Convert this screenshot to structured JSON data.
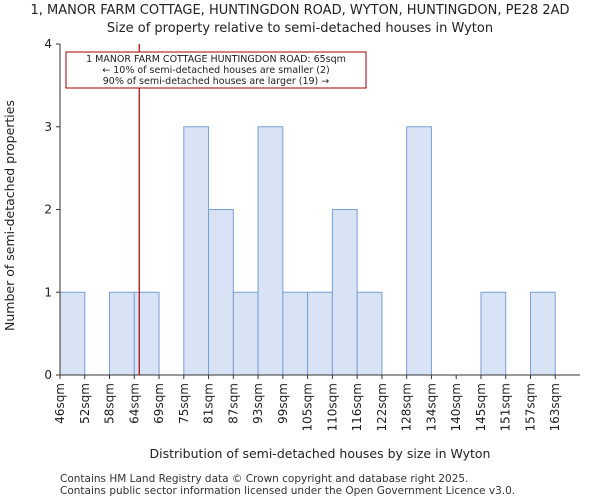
{
  "chart_data": {
    "type": "bar",
    "title": "1, MANOR FARM COTTAGE, HUNTINGDON ROAD, WYTON, HUNTINGDON, PE28 2AD",
    "subtitle": "Size of property relative to semi-detached houses in Wyton",
    "xlabel": "Distribution of semi-detached houses by size in Wyton",
    "ylabel": "Number of semi-detached properties",
    "categories": [
      "46sqm",
      "52sqm",
      "58sqm",
      "64sqm",
      "69sqm",
      "75sqm",
      "81sqm",
      "87sqm",
      "93sqm",
      "99sqm",
      "105sqm",
      "110sqm",
      "116sqm",
      "122sqm",
      "128sqm",
      "134sqm",
      "140sqm",
      "145sqm",
      "151sqm",
      "157sqm",
      "163sqm"
    ],
    "values": [
      1,
      0,
      1,
      1,
      0,
      3,
      2,
      1,
      3,
      1,
      1,
      2,
      1,
      0,
      3,
      0,
      0,
      1,
      0,
      1,
      0
    ],
    "ylim": [
      0,
      4
    ],
    "yticks": [
      0,
      1,
      2,
      3,
      4
    ],
    "grid": false,
    "marker": {
      "value": 65,
      "color": "#aa0000"
    },
    "annotation": {
      "lines": [
        "1 MANOR FARM COTTAGE HUNTINGDON ROAD: 65sqm",
        "← 10% of semi-detached houses are smaller (2)",
        "90% of semi-detached houses are larger (19) →"
      ]
    },
    "colors": {
      "bar_fill": "#d8e3f5",
      "bar_stroke": "#7a9fd4",
      "marker": "#aa0000"
    }
  },
  "footer": {
    "line1": "Contains HM Land Registry data © Crown copyright and database right 2025.",
    "line2": "Contains public sector information licensed under the Open Government Licence v3.0."
  }
}
